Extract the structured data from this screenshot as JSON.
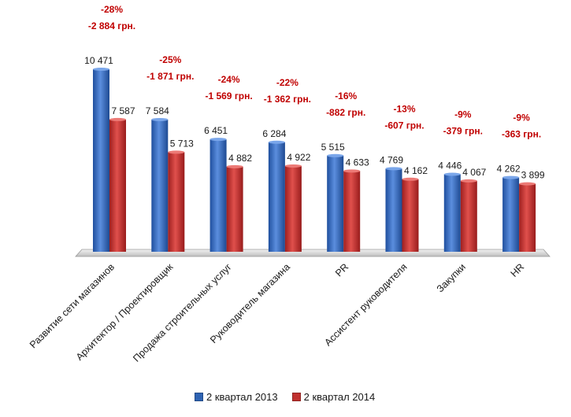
{
  "chart_data": {
    "type": "bar",
    "categories": [
      "Развитие сети магазинов",
      "Архитектор / Проектировщик",
      "Продажа строительных услуг",
      "Руководитель магазина",
      "PR",
      "Ассистент руководителя",
      "Закупки",
      "HR"
    ],
    "series": [
      {
        "name": "2 квартал 2013",
        "values": [
          10471,
          7584,
          6451,
          6284,
          5515,
          4769,
          4446,
          4262
        ],
        "labels": [
          "10 471",
          "7 584",
          "6 451",
          "6 284",
          "5 515",
          "4 769",
          "4 446",
          "4 262"
        ],
        "color": "#2e63b3"
      },
      {
        "name": "2 квартал 2014",
        "values": [
          7587,
          5713,
          4882,
          4922,
          4633,
          4162,
          4067,
          3899
        ],
        "labels": [
          "7 587",
          "5 713",
          "4 882",
          "4 922",
          "4 633",
          "4 162",
          "4 067",
          "3 899"
        ],
        "color": "#c0302e"
      }
    ],
    "change_percent": [
      "-28%",
      "-25%",
      "-24%",
      "-22%",
      "-16%",
      "-13%",
      "-9%",
      "-9%"
    ],
    "change_amount": [
      "-2 884 грн.",
      "-1 871 грн.",
      "-1 569 грн.",
      "-1 362 грн.",
      "-882 грн.",
      "-607 грн.",
      "-379 грн.",
      "-363 грн."
    ],
    "ylim": [
      0,
      10471
    ],
    "grid": false,
    "legend_position": "bottom",
    "title": "",
    "xlabel": "",
    "ylabel": ""
  }
}
